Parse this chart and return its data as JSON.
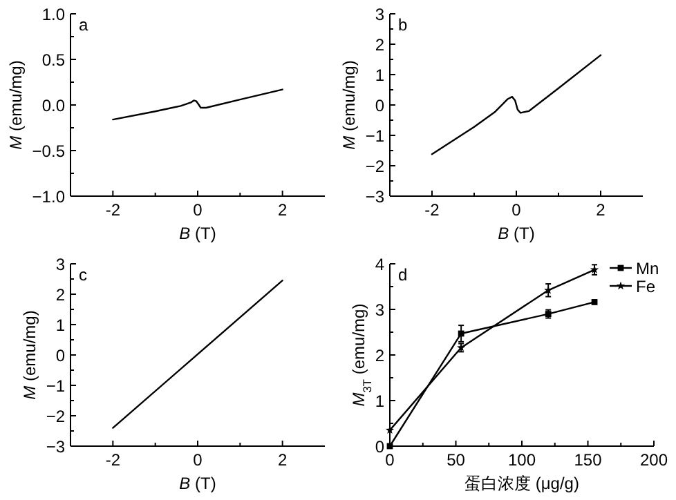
{
  "chart_data": [
    {
      "type": "line",
      "xlabel": "B (T)",
      "ylabel": "M (emu/mg)",
      "annotations": [
        "a"
      ],
      "xlim": [
        -3,
        3
      ],
      "xticks": [
        -2,
        {
          "value": -1,
          "label": null
        },
        0,
        {
          "value": 1,
          "label": null
        },
        2
      ],
      "ylim": [
        -1,
        1
      ],
      "yticks": [
        {
          "value": -1,
          "label": "−1.0"
        },
        {
          "value": -0.75,
          "label": null
        },
        {
          "value": -0.5,
          "label": "−0.5"
        },
        {
          "value": -0.25,
          "label": null
        },
        {
          "value": 0,
          "label": "0.0"
        },
        {
          "value": 0.25,
          "label": null
        },
        {
          "value": 0.5,
          "label": "0.5"
        },
        {
          "value": 0.75,
          "label": null
        },
        {
          "value": 1,
          "label": "1.0"
        }
      ],
      "series": [
        {
          "color": "#000000",
          "x": [
            -2,
            -1,
            -0.4,
            -0.15,
            -0.09,
            -0.03,
            0.03,
            0.07,
            0.2,
            1,
            2
          ],
          "values": [
            -0.16,
            -0.07,
            -0.01,
            0.03,
            0.05,
            0.04,
            0.0,
            -0.03,
            -0.03,
            0.06,
            0.17
          ]
        }
      ]
    },
    {
      "type": "line",
      "xlabel": "B (T)",
      "ylabel": "M (emu/mg)",
      "annotations": [
        "b"
      ],
      "xlim": [
        -3,
        3
      ],
      "xticks": [
        -2,
        {
          "value": -1,
          "label": null
        },
        0,
        {
          "value": 1,
          "label": null
        },
        2
      ],
      "ylim": [
        -3,
        3
      ],
      "yticks": [
        {
          "value": -3,
          "label": "−3"
        },
        {
          "value": -2.5,
          "label": null
        },
        {
          "value": -2,
          "label": "−2"
        },
        {
          "value": -1.5,
          "label": null
        },
        {
          "value": -1,
          "label": "−1"
        },
        {
          "value": -0.5,
          "label": null
        },
        0,
        {
          "value": 0.5,
          "label": null
        },
        1,
        {
          "value": 1.5,
          "label": null
        },
        2,
        {
          "value": 2.5,
          "label": null
        },
        3
      ],
      "series": [
        {
          "color": "#000000",
          "x": [
            -2,
            -1,
            -0.5,
            -0.2,
            -0.1,
            -0.03,
            0.03,
            0.1,
            0.3,
            1,
            2
          ],
          "values": [
            -1.62,
            -0.72,
            -0.22,
            0.2,
            0.27,
            0.15,
            -0.15,
            -0.26,
            -0.2,
            0.55,
            1.64
          ]
        }
      ]
    },
    {
      "type": "line",
      "xlabel": "B (T)",
      "ylabel": "M (emu/mg)",
      "annotations": [
        "c"
      ],
      "xlim": [
        -3,
        3
      ],
      "xticks": [
        -2,
        {
          "value": -1,
          "label": null
        },
        0,
        {
          "value": 1,
          "label": null
        },
        2
      ],
      "ylim": [
        -3,
        3
      ],
      "yticks": [
        {
          "value": -3,
          "label": "−3"
        },
        {
          "value": -2.5,
          "label": null
        },
        {
          "value": -2,
          "label": "−2"
        },
        {
          "value": -1.5,
          "label": null
        },
        {
          "value": -1,
          "label": "−1"
        },
        {
          "value": -0.5,
          "label": null
        },
        0,
        {
          "value": 0.5,
          "label": null
        },
        1,
        {
          "value": 1.5,
          "label": null
        },
        2,
        {
          "value": 2.5,
          "label": null
        },
        3
      ],
      "series": [
        {
          "color": "#000000",
          "x": [
            -2,
            2
          ],
          "values": [
            -2.4,
            2.45
          ]
        }
      ]
    },
    {
      "type": "line",
      "xlabel": "蛋白浓度 (μg/g)",
      "ylabel": "M$_{3T}$ (emu/mg)",
      "annotations": [
        "d"
      ],
      "legend": "top right",
      "xlim": [
        0,
        200
      ],
      "xticks": [
        0,
        {
          "value": 25,
          "label": null
        },
        50,
        {
          "value": 75,
          "label": null
        },
        100,
        {
          "value": 125,
          "label": null
        },
        150,
        {
          "value": 175,
          "label": null
        },
        200
      ],
      "ylim": [
        0,
        4
      ],
      "yticks": [
        0,
        {
          "value": 0.5,
          "label": null
        },
        1,
        {
          "value": 1.5,
          "label": null
        },
        2,
        {
          "value": 2.5,
          "label": null
        },
        3,
        {
          "value": 3.5,
          "label": null
        },
        4
      ],
      "series": [
        {
          "name": "Mn",
          "color": "#000000",
          "marker": "square",
          "x": [
            0,
            54,
            120,
            155
          ],
          "values": [
            0,
            2.47,
            2.9,
            3.16
          ],
          "errors": [
            null,
            0.18,
            0.09,
            null
          ]
        },
        {
          "name": "Fe",
          "color": "#000000",
          "marker": "star",
          "x": [
            0,
            54,
            120,
            155
          ],
          "values": [
            0.35,
            2.16,
            3.42,
            3.87
          ],
          "errors": [
            null,
            0.09,
            0.14,
            0.11
          ]
        }
      ]
    }
  ]
}
